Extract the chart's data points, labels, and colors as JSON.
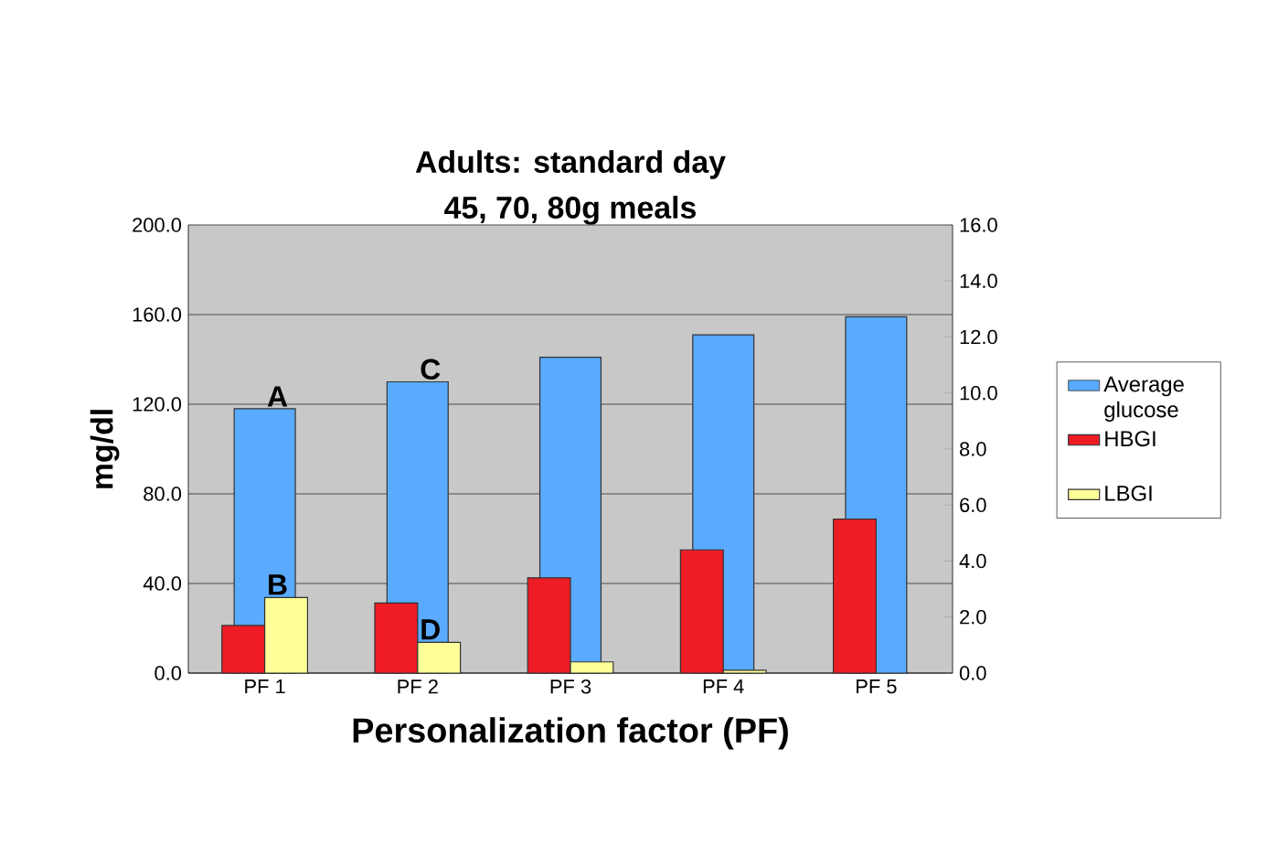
{
  "chart_data": {
    "type": "bar",
    "title": "Adults: standard day",
    "subtitle": "45, 70, 80g meals",
    "xlabel": "Personalization factor (PF)",
    "ylabel": "mg/dl",
    "categories": [
      "PF 1",
      "PF 2",
      "PF 3",
      "PF 4",
      "PF 5"
    ],
    "series": [
      {
        "name": "Average glucose",
        "color": "#5aabff",
        "values": [
          118,
          130,
          141,
          151,
          159
        ]
      },
      {
        "name": "HBGI",
        "color": "#ee1c24",
        "values": [
          1.7,
          2.5,
          3.4,
          4.4,
          5.5
        ],
        "axis": "y2"
      },
      {
        "name": "LBGI",
        "color": "#ffff99",
        "values": [
          2.7,
          1.1,
          0.4,
          0.1,
          null
        ],
        "axis": "y2"
      }
    ],
    "ylim": [
      0,
      200
    ],
    "yticks": [
      {
        "value": 0,
        "label": "0.0"
      },
      {
        "value": 40,
        "label": "40.0"
      },
      {
        "value": 80,
        "label": "80.0"
      },
      {
        "value": 120,
        "label": "120.0"
      },
      {
        "value": 160,
        "label": "160.0"
      },
      {
        "value": 200,
        "label": "200.0"
      }
    ],
    "y2lim": [
      0,
      16
    ],
    "y2ticks": [
      {
        "value": 0,
        "label": "0.0"
      },
      {
        "value": 2,
        "label": "2.0"
      },
      {
        "value": 4,
        "label": "4.0"
      },
      {
        "value": 6,
        "label": "6.0"
      },
      {
        "value": 8,
        "label": "8.0"
      },
      {
        "value": 10,
        "label": "10.0"
      },
      {
        "value": 12,
        "label": "12.0"
      },
      {
        "value": 14,
        "label": "14.0"
      },
      {
        "value": 16,
        "label": "16.0"
      }
    ],
    "grid": "y",
    "legend": "right",
    "annotations": [
      {
        "text": "A",
        "x": "PF 1",
        "y": 118
      },
      {
        "text": "B",
        "x": "PF 1",
        "y": 34
      },
      {
        "text": "C",
        "x": "PF 2",
        "y": 130
      },
      {
        "text": "D",
        "x": "PF 2",
        "y": 14
      }
    ]
  }
}
